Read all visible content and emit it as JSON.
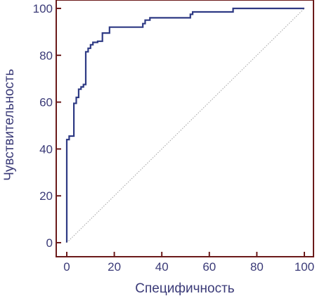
{
  "chart_data": {
    "type": "line",
    "title": "",
    "xlabel": "Специфичность",
    "ylabel": "Чувствительность",
    "xlim": [
      0,
      100
    ],
    "ylim": [
      0,
      100
    ],
    "xticks": [
      0,
      20,
      40,
      60,
      80,
      100
    ],
    "yticks": [
      0,
      20,
      40,
      60,
      80,
      100
    ],
    "grid": false,
    "colors": {
      "frame": "#6b1a1a",
      "curve": "#2e3a84",
      "diagonal": "#a0a0a0",
      "text": "#3b3b78"
    },
    "series": [
      {
        "style": "step",
        "x": [
          0,
          0,
          0,
          0,
          0,
          1,
          1,
          3,
          3,
          4,
          4,
          5,
          5,
          6,
          6,
          7,
          7,
          8,
          8,
          9,
          9,
          10,
          10,
          11,
          11,
          13,
          13,
          15,
          15,
          18,
          18,
          32,
          32,
          33,
          33,
          35,
          35,
          52,
          52,
          53,
          53,
          70,
          70,
          100
        ],
        "y": [
          0,
          28,
          36,
          40,
          44,
          44,
          45.5,
          45.5,
          59.5,
          59.5,
          62,
          62,
          65.5,
          65.5,
          66.5,
          66.5,
          67.5,
          67.5,
          81.5,
          81.5,
          83,
          83,
          84.5,
          84.5,
          85.5,
          85.5,
          86,
          86,
          89.5,
          89.5,
          92,
          92,
          93.5,
          93.5,
          95,
          95,
          96,
          96,
          97.5,
          97.5,
          98.5,
          98.5,
          100,
          100
        ]
      },
      {
        "style": "dotted",
        "x": [
          0,
          100
        ],
        "y": [
          0,
          100
        ]
      }
    ]
  }
}
